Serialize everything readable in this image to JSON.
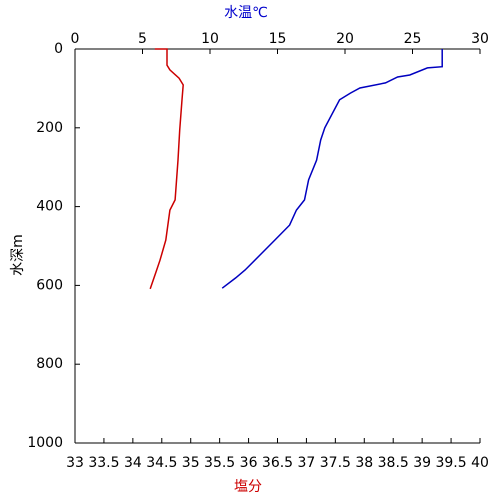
{
  "chart_data": {
    "type": "line",
    "x_label": "塩分",
    "x_label_color": "#cc0000",
    "x2_label": "水温℃",
    "x2_label_color": "#0000cc",
    "y_label": "水深m",
    "xlim": [
      33,
      40
    ],
    "xticks": [
      33,
      33.5,
      34,
      34.5,
      35,
      35.5,
      36,
      36.5,
      37,
      37.5,
      38,
      38.5,
      39,
      39.5,
      40
    ],
    "x2lim": [
      0,
      30
    ],
    "x2ticks": [
      0,
      5,
      10,
      15,
      20,
      25,
      30
    ],
    "ylim": [
      0,
      1000
    ],
    "yticks": [
      0,
      200,
      400,
      600,
      800,
      1000
    ],
    "y_inverted": true,
    "series": [
      {
        "color": "#0000c0",
        "axis": "x2",
        "x": [
          27.2,
          27.2,
          26.1,
          24.8,
          23.9,
          23.0,
          21.1,
          20.4,
          19.6,
          18.5,
          18.2,
          17.9,
          17.3,
          17.0,
          16.4,
          15.9,
          14.8,
          13.7,
          12.6,
          11.9,
          10.9
        ],
        "y": [
          0,
          45,
          48,
          66,
          71,
          86,
          99,
          112,
          129,
          200,
          231,
          282,
          332,
          383,
          409,
          447,
          485,
          523,
          561,
          581,
          607
        ]
      },
      {
        "color": "#cc0000",
        "axis": "x",
        "x": [
          34.38,
          34.59,
          34.59,
          34.64,
          34.8,
          34.87,
          34.85,
          34.81,
          34.78,
          34.73,
          34.64,
          34.57,
          34.47,
          34.4,
          34.3
        ],
        "y": [
          0,
          0,
          41,
          53,
          74,
          91,
          129,
          206,
          282,
          383,
          409,
          485,
          536,
          566,
          609
        ]
      }
    ]
  }
}
